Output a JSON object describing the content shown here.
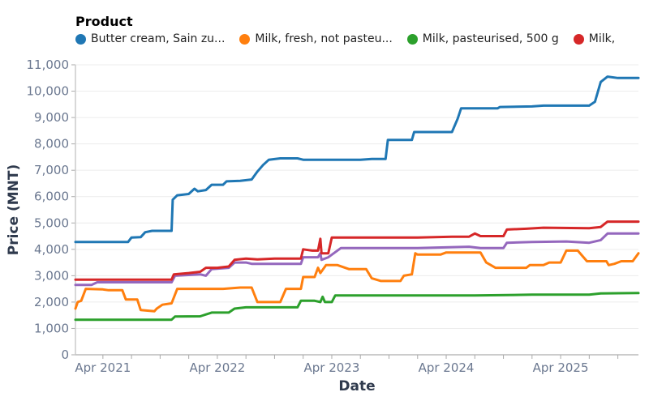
{
  "legend": {
    "title": "Product",
    "items": [
      {
        "label": "Butter cream, Sain zu...",
        "color": "#1f77b4"
      },
      {
        "label": "Milk, fresh, not pasteu...",
        "color": "#ff7f0e"
      },
      {
        "label": "Milk, pasteurised, 500 g",
        "color": "#2ca02c"
      },
      {
        "label": "Milk,",
        "color": "#d62728"
      }
    ]
  },
  "axes": {
    "x_title": "Date",
    "y_title": "Price (MNT)",
    "x_ticks": [
      "Apr 2021",
      "Apr 2022",
      "Apr 2023",
      "Apr 2024",
      "Apr 2025"
    ],
    "y_ticks": [
      "0",
      "1,000",
      "2,000",
      "3,000",
      "4,000",
      "5,000",
      "6,000",
      "7,000",
      "8,000",
      "9,000",
      "10,000",
      "11,000"
    ]
  },
  "chart_data": {
    "type": "line",
    "title": "",
    "xlabel": "Date",
    "ylabel": "Price (MNT)",
    "ylim": [
      0,
      11000
    ],
    "xlim": [
      "2021-01",
      "2025-12"
    ],
    "grid": true,
    "legend_position": "top",
    "legend_title": "Product",
    "series": [
      {
        "name": "Butter cream, Sain zu...",
        "color": "#1f77b4",
        "points": [
          [
            2021.01,
            4280
          ],
          [
            2021.47,
            4280
          ],
          [
            2021.5,
            4450
          ],
          [
            2021.58,
            4460
          ],
          [
            2021.62,
            4650
          ],
          [
            2021.68,
            4700
          ],
          [
            2021.85,
            4700
          ],
          [
            2021.86,
            5880
          ],
          [
            2021.9,
            6050
          ],
          [
            2022.0,
            6100
          ],
          [
            2022.05,
            6300
          ],
          [
            2022.08,
            6200
          ],
          [
            2022.15,
            6250
          ],
          [
            2022.2,
            6450
          ],
          [
            2022.3,
            6450
          ],
          [
            2022.33,
            6580
          ],
          [
            2022.45,
            6600
          ],
          [
            2022.55,
            6650
          ],
          [
            2022.6,
            6950
          ],
          [
            2022.65,
            7200
          ],
          [
            2022.7,
            7400
          ],
          [
            2022.8,
            7450
          ],
          [
            2022.95,
            7450
          ],
          [
            2023.0,
            7400
          ],
          [
            2023.5,
            7400
          ],
          [
            2023.6,
            7430
          ],
          [
            2023.72,
            7430
          ],
          [
            2023.74,
            8150
          ],
          [
            2023.95,
            8150
          ],
          [
            2023.97,
            8450
          ],
          [
            2024.3,
            8450
          ],
          [
            2024.35,
            8950
          ],
          [
            2024.38,
            9350
          ],
          [
            2024.7,
            9350
          ],
          [
            2024.72,
            9400
          ],
          [
            2025.0,
            9420
          ],
          [
            2025.1,
            9450
          ],
          [
            2025.5,
            9450
          ],
          [
            2025.55,
            9600
          ],
          [
            2025.6,
            10350
          ],
          [
            2025.66,
            10550
          ],
          [
            2025.75,
            10500
          ],
          [
            2025.93,
            10500
          ]
        ]
      },
      {
        "name": "Milk, fresh, not pasteu...",
        "color": "#ff7f0e",
        "points": [
          [
            2021.01,
            1750
          ],
          [
            2021.03,
            2000
          ],
          [
            2021.06,
            2050
          ],
          [
            2021.1,
            2500
          ],
          [
            2021.25,
            2480
          ],
          [
            2021.3,
            2450
          ],
          [
            2021.42,
            2450
          ],
          [
            2021.45,
            2100
          ],
          [
            2021.55,
            2100
          ],
          [
            2021.58,
            1700
          ],
          [
            2021.7,
            1650
          ],
          [
            2021.72,
            1750
          ],
          [
            2021.77,
            1900
          ],
          [
            2021.85,
            1950
          ],
          [
            2021.9,
            2500
          ],
          [
            2022.15,
            2500
          ],
          [
            2022.3,
            2500
          ],
          [
            2022.45,
            2550
          ],
          [
            2022.55,
            2550
          ],
          [
            2022.6,
            2000
          ],
          [
            2022.8,
            2000
          ],
          [
            2022.85,
            2500
          ],
          [
            2022.98,
            2500
          ],
          [
            2023.0,
            2950
          ],
          [
            2023.1,
            2950
          ],
          [
            2023.13,
            3300
          ],
          [
            2023.15,
            3100
          ],
          [
            2023.2,
            3400
          ],
          [
            2023.3,
            3400
          ],
          [
            2023.4,
            3250
          ],
          [
            2023.55,
            3250
          ],
          [
            2023.6,
            2900
          ],
          [
            2023.68,
            2800
          ],
          [
            2023.85,
            2800
          ],
          [
            2023.88,
            3000
          ],
          [
            2023.95,
            3050
          ],
          [
            2023.98,
            3850
          ],
          [
            2024.0,
            3800
          ],
          [
            2024.2,
            3800
          ],
          [
            2024.25,
            3880
          ],
          [
            2024.55,
            3880
          ],
          [
            2024.6,
            3500
          ],
          [
            2024.68,
            3300
          ],
          [
            2024.95,
            3300
          ],
          [
            2024.98,
            3400
          ],
          [
            2025.1,
            3400
          ],
          [
            2025.15,
            3500
          ],
          [
            2025.25,
            3500
          ],
          [
            2025.3,
            3950
          ],
          [
            2025.4,
            3950
          ],
          [
            2025.48,
            3550
          ],
          [
            2025.65,
            3550
          ],
          [
            2025.67,
            3400
          ],
          [
            2025.72,
            3450
          ],
          [
            2025.78,
            3550
          ],
          [
            2025.88,
            3550
          ],
          [
            2025.93,
            3850
          ]
        ]
      },
      {
        "name": "Milk, pasteurised, 500 g",
        "color": "#2ca02c",
        "points": [
          [
            2021.01,
            1330
          ],
          [
            2021.2,
            1330
          ],
          [
            2021.85,
            1330
          ],
          [
            2021.88,
            1450
          ],
          [
            2022.1,
            1460
          ],
          [
            2022.2,
            1600
          ],
          [
            2022.35,
            1600
          ],
          [
            2022.4,
            1750
          ],
          [
            2022.5,
            1800
          ],
          [
            2022.7,
            1800
          ],
          [
            2022.95,
            1800
          ],
          [
            2022.98,
            2050
          ],
          [
            2023.1,
            2050
          ],
          [
            2023.15,
            2000
          ],
          [
            2023.17,
            2200
          ],
          [
            2023.19,
            2000
          ],
          [
            2023.25,
            2000
          ],
          [
            2023.28,
            2250
          ],
          [
            2024.0,
            2250
          ],
          [
            2024.5,
            2250
          ],
          [
            2025.0,
            2280
          ],
          [
            2025.5,
            2280
          ],
          [
            2025.6,
            2330
          ],
          [
            2025.93,
            2340
          ]
        ]
      },
      {
        "name": "Milk,",
        "color": "#d62728",
        "points": [
          [
            2021.01,
            2850
          ],
          [
            2021.85,
            2850
          ],
          [
            2021.87,
            3050
          ],
          [
            2022.0,
            3100
          ],
          [
            2022.1,
            3150
          ],
          [
            2022.15,
            3300
          ],
          [
            2022.25,
            3300
          ],
          [
            2022.35,
            3350
          ],
          [
            2022.4,
            3600
          ],
          [
            2022.5,
            3650
          ],
          [
            2022.6,
            3620
          ],
          [
            2022.75,
            3650
          ],
          [
            2022.98,
            3650
          ],
          [
            2023.0,
            4000
          ],
          [
            2023.08,
            3950
          ],
          [
            2023.13,
            3950
          ],
          [
            2023.15,
            4400
          ],
          [
            2023.16,
            3850
          ],
          [
            2023.22,
            3850
          ],
          [
            2023.25,
            4450
          ],
          [
            2024.0,
            4450
          ],
          [
            2024.3,
            4480
          ],
          [
            2024.45,
            4480
          ],
          [
            2024.5,
            4600
          ],
          [
            2024.55,
            4500
          ],
          [
            2024.75,
            4500
          ],
          [
            2024.78,
            4750
          ],
          [
            2024.95,
            4780
          ],
          [
            2025.1,
            4820
          ],
          [
            2025.5,
            4800
          ],
          [
            2025.6,
            4850
          ],
          [
            2025.66,
            5050
          ],
          [
            2025.93,
            5050
          ]
        ]
      },
      {
        "name": "(series 5, purple)",
        "color": "#9467bd",
        "points": [
          [
            2021.01,
            2650
          ],
          [
            2021.15,
            2650
          ],
          [
            2021.2,
            2750
          ],
          [
            2021.85,
            2750
          ],
          [
            2021.88,
            3000
          ],
          [
            2022.1,
            3050
          ],
          [
            2022.15,
            3000
          ],
          [
            2022.2,
            3250
          ],
          [
            2022.35,
            3300
          ],
          [
            2022.4,
            3500
          ],
          [
            2022.5,
            3500
          ],
          [
            2022.55,
            3450
          ],
          [
            2022.98,
            3450
          ],
          [
            2023.0,
            3700
          ],
          [
            2023.13,
            3700
          ],
          [
            2023.15,
            3850
          ],
          [
            2023.16,
            3600
          ],
          [
            2023.22,
            3700
          ],
          [
            2023.33,
            4050
          ],
          [
            2024.0,
            4050
          ],
          [
            2024.45,
            4100
          ],
          [
            2024.55,
            4050
          ],
          [
            2024.75,
            4050
          ],
          [
            2024.78,
            4250
          ],
          [
            2025.0,
            4280
          ],
          [
            2025.3,
            4300
          ],
          [
            2025.5,
            4250
          ],
          [
            2025.6,
            4350
          ],
          [
            2025.66,
            4600
          ],
          [
            2025.93,
            4600
          ]
        ]
      }
    ]
  }
}
